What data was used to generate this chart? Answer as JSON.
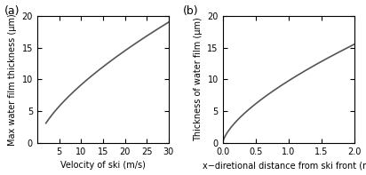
{
  "panel_a": {
    "label": "(a)",
    "xlabel": "Velocity of ski (m/s)",
    "ylabel": "Max water film thickness (μm)",
    "xlim": [
      0,
      30
    ],
    "ylim": [
      0,
      20
    ],
    "xticks": [
      5,
      10,
      15,
      20,
      25,
      30
    ],
    "yticks": [
      0,
      5,
      10,
      15,
      20
    ],
    "x_start": 2,
    "x_end": 30,
    "scale_factor": 1.967,
    "power": 0.6667
  },
  "panel_b": {
    "label": "(b)",
    "xlabel": "x−diretional distance from ski front (m)",
    "ylabel": "Thickness of water film (μm)",
    "xlim": [
      0,
      2
    ],
    "ylim": [
      0,
      20
    ],
    "xticks": [
      0,
      0.5,
      1,
      1.5,
      2
    ],
    "yticks": [
      0,
      5,
      10,
      15,
      20
    ],
    "x_start": 0.001,
    "x_end": 2.0,
    "scale_factor": 9.77,
    "power": 0.6667
  },
  "line_color": "#555555",
  "line_width": 1.2,
  "bg_color": "#ffffff",
  "tick_fontsize": 7,
  "label_fontsize": 7.0,
  "panel_label_fontsize": 9
}
